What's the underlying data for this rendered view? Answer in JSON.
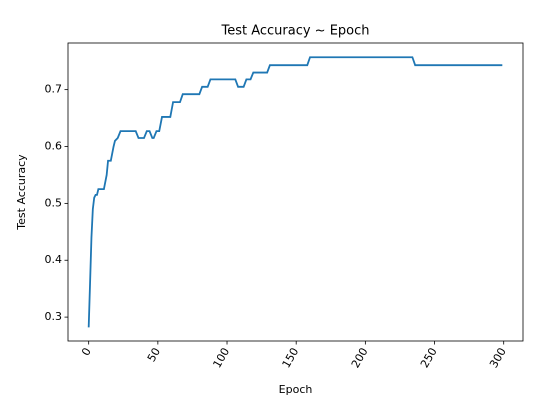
{
  "chart_data": {
    "type": "line",
    "title": "Test Accuracy ~ Epoch",
    "x_label": "Epoch",
    "y_label": "Test Accuracy",
    "x": [
      0,
      1,
      2,
      3,
      4,
      5,
      6,
      7,
      10,
      11,
      13,
      14,
      16,
      18,
      19,
      21,
      23,
      34,
      36,
      40,
      42,
      44,
      46,
      47,
      49,
      51,
      53,
      59,
      61,
      66,
      68,
      80,
      82,
      86,
      88,
      106,
      108,
      112,
      114,
      117,
      119,
      129,
      131,
      158,
      160,
      234,
      236,
      299
    ],
    "series": [
      {
        "name": "Test Accuracy",
        "color": "#1f77b4",
        "values": [
          0.282,
          0.36,
          0.44,
          0.49,
          0.51,
          0.515,
          0.515,
          0.525,
          0.525,
          0.525,
          0.55,
          0.575,
          0.575,
          0.6,
          0.61,
          0.615,
          0.627,
          0.627,
          0.615,
          0.615,
          0.627,
          0.627,
          0.615,
          0.615,
          0.627,
          0.627,
          0.652,
          0.652,
          0.678,
          0.678,
          0.692,
          0.692,
          0.705,
          0.705,
          0.718,
          0.718,
          0.705,
          0.705,
          0.718,
          0.718,
          0.73,
          0.73,
          0.743,
          0.743,
          0.757,
          0.757,
          0.743,
          0.743
        ]
      }
    ],
    "xlim": [
      -14.95,
      313.95
    ],
    "xticks": [
      0,
      50,
      100,
      150,
      200,
      250,
      300
    ],
    "ylim": [
      0.258,
      0.782
    ],
    "yticks": [
      0.3,
      0.4,
      0.5,
      0.6,
      0.7
    ]
  }
}
